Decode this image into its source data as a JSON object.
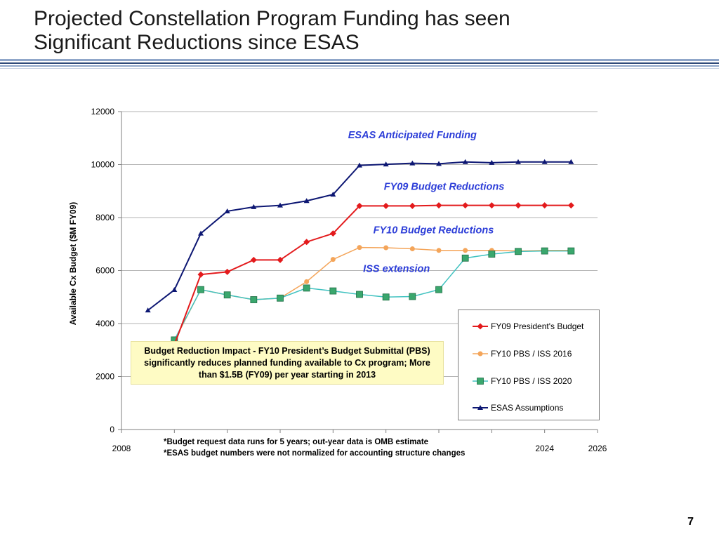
{
  "slide": {
    "title_line1": "Projected Constellation Program Funding has seen",
    "title_line2": "Significant Reductions since ESAS",
    "page_number": "7"
  },
  "notes": {
    "line1": "*Budget request data runs for 5 years; out-year data is OMB estimate",
    "line2": "*ESAS budget numbers were not normalized for accounting structure changes"
  },
  "impact_box": {
    "text": "Budget Reduction Impact  - FY10 President’s Budget Submittal (PBS) significantly reduces planned funding available to Cx program;  More than $1.5B (FY09) per year starting in 2013"
  },
  "colors": {
    "fy09": "#e31a1c",
    "fy10_2016": "#f4a55a",
    "fy10_2020": "#40c2c0",
    "fy10_2020_marker": "#3aa76d",
    "esas": "#0d1773",
    "annotation": "#2d3ed8",
    "impact_bg": "#fefbc4"
  },
  "chart_data": {
    "type": "line",
    "ylabel": "Available Cx Budget ($M FY09)",
    "xlabel": "",
    "ylim": [
      0,
      12000
    ],
    "xlim": [
      2008,
      2026
    ],
    "yticks": [
      0,
      2000,
      4000,
      6000,
      8000,
      10000,
      12000
    ],
    "xtick_labels": [
      {
        "value": 2008,
        "label": "2008"
      },
      {
        "value": 2024,
        "label": "2024"
      },
      {
        "value": 2026,
        "label": "2026"
      }
    ],
    "grid": true,
    "legend_position": "bottom-right",
    "annotations": [
      {
        "text": "ESAS Anticipated Funding",
        "x": 2019,
        "y": 11000
      },
      {
        "text": "FY09 Budget Reductions",
        "x": 2020.2,
        "y": 9050
      },
      {
        "text": "FY10 Budget Reductions",
        "x": 2019.8,
        "y": 7400
      },
      {
        "text": "ISS extension",
        "x": 2018.4,
        "y": 5950
      }
    ],
    "series": [
      {
        "name": "FY09 President's Budget",
        "marker": "diamond",
        "x": [
          2010,
          2011,
          2012,
          2013,
          2014,
          2015,
          2016,
          2017,
          2018,
          2019,
          2020,
          2021,
          2022,
          2023,
          2024,
          2025
        ],
        "values": [
          3200,
          5850,
          5950,
          6400,
          6400,
          7080,
          7400,
          8440,
          8440,
          8440,
          8460,
          8460,
          8460,
          8460,
          8460,
          8460
        ]
      },
      {
        "name": "FY10 PBS / ISS 2016",
        "marker": "circle",
        "x": [
          2010,
          2011,
          2012,
          2013,
          2014,
          2015,
          2016,
          2017,
          2018,
          2019,
          2020,
          2021,
          2022,
          2023,
          2024,
          2025
        ],
        "values": [
          3350,
          5280,
          5080,
          4900,
          4960,
          5580,
          6420,
          6870,
          6860,
          6820,
          6760,
          6760,
          6760,
          6740,
          6760,
          6760
        ]
      },
      {
        "name": "FY10 PBS / ISS 2020",
        "marker": "square",
        "x": [
          2010,
          2011,
          2012,
          2013,
          2014,
          2015,
          2016,
          2017,
          2018,
          2019,
          2020,
          2021,
          2022,
          2023,
          2024,
          2025
        ],
        "values": [
          3380,
          5280,
          5080,
          4900,
          4960,
          5340,
          5230,
          5100,
          5000,
          5020,
          5280,
          6470,
          6620,
          6720,
          6740,
          6740
        ]
      },
      {
        "name": "ESAS Assumptions",
        "marker": "triangle",
        "x": [
          2009,
          2010,
          2011,
          2012,
          2013,
          2014,
          2015,
          2016,
          2017,
          2018,
          2019,
          2020,
          2021,
          2022,
          2023,
          2024,
          2025
        ],
        "values": [
          4500,
          5270,
          7400,
          8240,
          8400,
          8460,
          8630,
          8870,
          9970,
          10010,
          10050,
          10030,
          10100,
          10070,
          10100,
          10100,
          10100
        ]
      }
    ]
  }
}
